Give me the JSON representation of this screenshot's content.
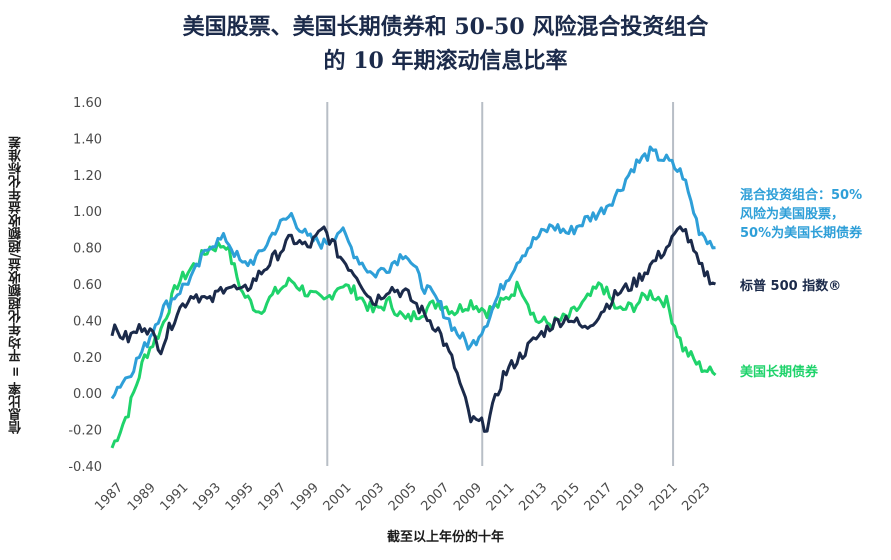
{
  "title": {
    "line1": "美国股票、美国长期债券和 50-50 风险混合投资组合",
    "line2": "的 10 年期滚动信息比率"
  },
  "chart_data": {
    "type": "line",
    "title": "美国股票、美国长期债券和 50-50 风险混合投资组合的 10 年期滚动信息比率",
    "xlabel": "截至以上年份的十年",
    "ylabel": "信息比率 = 平均年化超额收益/超额收益年化标准差",
    "ylim": [
      -0.4,
      1.6
    ],
    "xlim": [
      1986.5,
      2023.9
    ],
    "yticks": [
      "-0.40",
      "-0.20",
      "0.00",
      "0.20",
      "0.40",
      "0.60",
      "0.80",
      "1.00",
      "1.20",
      "1.40",
      "1.60"
    ],
    "xticks": [
      "1987",
      "1989",
      "1991",
      "1993",
      "1995",
      "1997",
      "1999",
      "2001",
      "2003",
      "2005",
      "2007",
      "2009",
      "2011",
      "2013",
      "2015",
      "2017",
      "2019",
      "2021",
      "2023"
    ],
    "vertical_lines": [
      1999.7,
      2009.2,
      2020.9
    ],
    "grid": false,
    "series": [
      {
        "name": "混合投资组合：50% 风险为美国股票，50%为美国长期债券",
        "color": "#2e9fd8",
        "x": [
          1986.5,
          1987.5,
          1988.5,
          1989.5,
          1990.5,
          1991.5,
          1992.5,
          1993.5,
          1994.5,
          1995.5,
          1996.5,
          1997.5,
          1998.5,
          1999.5,
          2000.5,
          2001.5,
          2002.5,
          2003.5,
          2004.5,
          2005.5,
          2006.5,
          2007.5,
          2008.5,
          2009.5,
          2010.5,
          2011.5,
          2012.5,
          2013.5,
          2014.5,
          2015.5,
          2016.5,
          2017.5,
          2018.5,
          2019.5,
          2020.5,
          2021.5,
          2022.5,
          2023.5
        ],
        "y": [
          0.0,
          0.1,
          0.25,
          0.45,
          0.55,
          0.65,
          0.82,
          0.85,
          0.7,
          0.75,
          0.9,
          0.98,
          0.85,
          0.82,
          0.9,
          0.75,
          0.65,
          0.7,
          0.78,
          0.6,
          0.5,
          0.35,
          0.25,
          0.4,
          0.6,
          0.75,
          0.85,
          0.92,
          0.88,
          0.95,
          1.0,
          1.1,
          1.25,
          1.32,
          1.28,
          1.2,
          0.9,
          0.8
        ]
      },
      {
        "name": "标普 500 指数®",
        "color": "#1b2a4a",
        "x": [
          1986.5,
          1987.5,
          1988.5,
          1989.5,
          1990.5,
          1991.5,
          1992.5,
          1993.5,
          1994.5,
          1995.5,
          1996.5,
          1997.5,
          1998.5,
          1999.5,
          2000.5,
          2001.5,
          2002.5,
          2003.5,
          2004.5,
          2005.5,
          2006.5,
          2007.5,
          2008.5,
          2009.5,
          2010.5,
          2011.5,
          2012.5,
          2013.5,
          2014.5,
          2015.5,
          2016.5,
          2017.5,
          2018.5,
          2019.5,
          2020.5,
          2021.5,
          2022.5,
          2023.5
        ],
        "y": [
          0.35,
          0.3,
          0.38,
          0.25,
          0.45,
          0.55,
          0.5,
          0.6,
          0.55,
          0.65,
          0.75,
          0.85,
          0.8,
          0.9,
          0.75,
          0.65,
          0.5,
          0.58,
          0.55,
          0.45,
          0.35,
          0.15,
          -0.15,
          -0.18,
          0.1,
          0.2,
          0.3,
          0.38,
          0.42,
          0.35,
          0.45,
          0.55,
          0.6,
          0.7,
          0.8,
          0.92,
          0.7,
          0.6
        ]
      },
      {
        "name": "美国长期债券",
        "color": "#1fd36b",
        "x": [
          1986.5,
          1987.5,
          1988.5,
          1989.5,
          1990.5,
          1991.5,
          1992.5,
          1993.5,
          1994.5,
          1995.5,
          1996.5,
          1997.5,
          1998.5,
          1999.5,
          2000.5,
          2001.5,
          2002.5,
          2003.5,
          2004.5,
          2005.5,
          2006.5,
          2007.5,
          2008.5,
          2009.5,
          2010.5,
          2011.5,
          2012.5,
          2013.5,
          2014.5,
          2015.5,
          2016.5,
          2017.5,
          2018.5,
          2019.5,
          2020.5,
          2021.5,
          2022.5,
          2023.5
        ],
        "y": [
          -0.3,
          -0.1,
          0.2,
          0.35,
          0.6,
          0.7,
          0.8,
          0.82,
          0.55,
          0.45,
          0.55,
          0.62,
          0.55,
          0.5,
          0.6,
          0.55,
          0.45,
          0.5,
          0.4,
          0.45,
          0.5,
          0.45,
          0.5,
          0.45,
          0.5,
          0.6,
          0.4,
          0.38,
          0.42,
          0.5,
          0.6,
          0.45,
          0.48,
          0.55,
          0.5,
          0.25,
          0.15,
          0.1
        ]
      }
    ]
  },
  "legend": {
    "mixed_line1": "混合投资组合：50%",
    "mixed_line2": "风险为美国股票，",
    "mixed_line3": "50%为美国长期债券",
    "sp500": "标普 500 指数®",
    "bonds": "美国长期债券"
  },
  "axis": {
    "ylabel": "信息比率 = 平均年化超额收益/超额收益年化标准差",
    "xlabel": "截至以上年份的十年"
  }
}
